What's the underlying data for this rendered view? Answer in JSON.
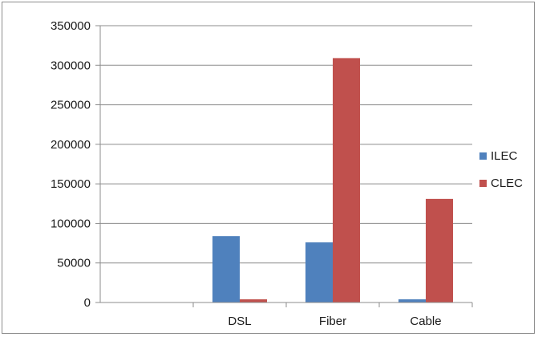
{
  "chart_data": {
    "type": "bar",
    "title": "",
    "xlabel": "",
    "ylabel": "",
    "categories": [
      "",
      "DSL",
      "Fiber",
      "Cable"
    ],
    "series": [
      {
        "name": "ILEC",
        "color": "#4f81bd",
        "values": [
          0,
          84000,
          76000,
          4000
        ]
      },
      {
        "name": "CLEC",
        "color": "#c0504d",
        "values": [
          0,
          4000,
          309000,
          131000
        ]
      }
    ],
    "ylim": [
      0,
      350000
    ],
    "y_ticks": [
      0,
      50000,
      100000,
      150000,
      200000,
      250000,
      300000,
      350000
    ],
    "y_tick_labels": [
      "0",
      "50000",
      "100000",
      "150000",
      "200000",
      "250000",
      "300000",
      "350000"
    ],
    "grid": true,
    "legend_position": "right"
  }
}
